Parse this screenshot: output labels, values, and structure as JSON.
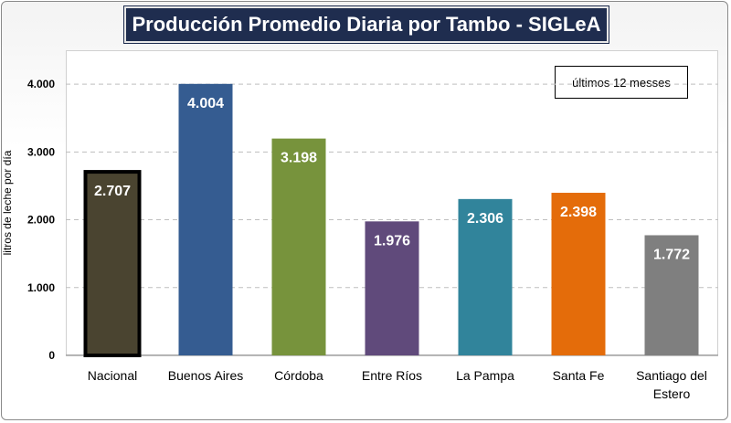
{
  "chart_data": {
    "type": "bar",
    "title": "Producción Promedio Diaria por Tambo - SIGLeA",
    "legend_note": "últimos 12 messes",
    "ylabel": "litros de leche por día",
    "xlabel": "",
    "ylim": [
      0,
      4500
    ],
    "yticks": [
      {
        "value": 0,
        "label": "0"
      },
      {
        "value": 1000,
        "label": "1.000"
      },
      {
        "value": 2000,
        "label": "2.000"
      },
      {
        "value": 3000,
        "label": "3.000"
      },
      {
        "value": 4000,
        "label": "4.000"
      }
    ],
    "grid": true,
    "categories": [
      [
        "Nacional"
      ],
      [
        "Buenos Aires"
      ],
      [
        "Córdoba"
      ],
      [
        "Entre Ríos"
      ],
      [
        "La Pampa"
      ],
      [
        "Santa Fe"
      ],
      [
        "Santiago del",
        "Estero"
      ]
    ],
    "values": [
      2707,
      4004,
      3198,
      1976,
      2306,
      2398,
      1772
    ],
    "value_labels": [
      "2.707",
      "4.004",
      "3.198",
      "1.976",
      "2.306",
      "2.398",
      "1.772"
    ],
    "colors": [
      "#4a4430",
      "#355c91",
      "#77933c",
      "#604a7b",
      "#31849b",
      "#e46c0a",
      "#7f7f7f"
    ],
    "highlight_outline": "#000000"
  }
}
